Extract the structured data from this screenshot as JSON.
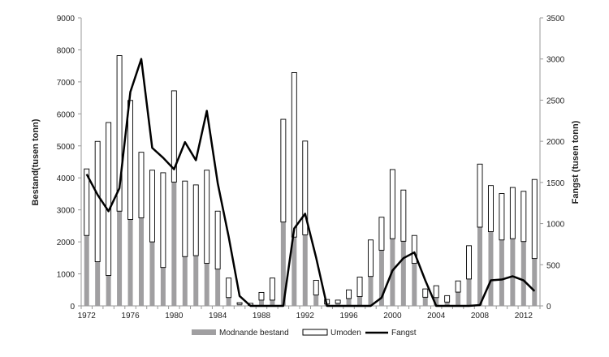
{
  "chart_data": {
    "type": "bar+line",
    "title": "",
    "xlabel": "",
    "ylabel_left": "Bestand(tusen tonn)",
    "ylabel_right": "Fangst (tusen tonn)",
    "ylim_left": [
      0,
      9000
    ],
    "ylim_right": [
      0,
      3500
    ],
    "yticks_left": [
      0,
      1000,
      2000,
      3000,
      4000,
      5000,
      6000,
      7000,
      8000,
      9000
    ],
    "yticks_right": [
      0,
      500,
      1000,
      1500,
      2000,
      2500,
      3000,
      3500
    ],
    "xtick_labels": [
      "1972",
      "1976",
      "1980",
      "1984",
      "1988",
      "1992",
      "1996",
      "2000",
      "2004",
      "2008",
      "2012"
    ],
    "grid": false,
    "legend_position": "bottom",
    "years": [
      1972,
      1973,
      1974,
      1975,
      1976,
      1977,
      1978,
      1979,
      1980,
      1981,
      1982,
      1983,
      1984,
      1985,
      1986,
      1987,
      1988,
      1989,
      1990,
      1991,
      1992,
      1993,
      1994,
      1995,
      1996,
      1997,
      1998,
      1999,
      2000,
      2001,
      2002,
      2003,
      2004,
      2005,
      2006,
      2007,
      2008,
      2009,
      2010,
      2011,
      2012,
      2013
    ],
    "series": [
      {
        "name": "Modnande bestand",
        "type": "stacked-bar",
        "axis": "left",
        "color": "#a09fa1",
        "values": [
          2200,
          1380,
          950,
          2960,
          2700,
          2750,
          2000,
          1200,
          3870,
          1540,
          1570,
          1330,
          1150,
          260,
          50,
          20,
          180,
          180,
          2620,
          2150,
          2220,
          340,
          60,
          80,
          230,
          290,
          920,
          1740,
          2100,
          2020,
          1330,
          270,
          260,
          120,
          430,
          840,
          2460,
          2320,
          2060,
          2100,
          2010,
          1480
        ]
      },
      {
        "name": "Umoden",
        "type": "stacked-bar",
        "axis": "left",
        "color": "#ffffff",
        "values": [
          2080,
          3760,
          4780,
          4860,
          3720,
          2050,
          2240,
          2960,
          2850,
          2360,
          2210,
          2910,
          1810,
          610,
          50,
          60,
          240,
          690,
          3210,
          5140,
          2930,
          460,
          140,
          100,
          270,
          610,
          1140,
          1030,
          2160,
          1600,
          870,
          260,
          370,
          200,
          350,
          1040,
          1970,
          1440,
          1450,
          1600,
          1570,
          2470
        ]
      },
      {
        "name": "Fangst",
        "type": "line",
        "axis": "right",
        "color": "#000000",
        "values": [
          1600,
          1350,
          1150,
          1430,
          2600,
          3000,
          1920,
          1800,
          1660,
          1990,
          1770,
          2370,
          1490,
          840,
          120,
          0,
          0,
          0,
          0,
          940,
          1120,
          590,
          0,
          0,
          0,
          0,
          0,
          100,
          430,
          580,
          650,
          310,
          0,
          0,
          0,
          0,
          10,
          310,
          320,
          360,
          310,
          180
        ]
      }
    ]
  }
}
